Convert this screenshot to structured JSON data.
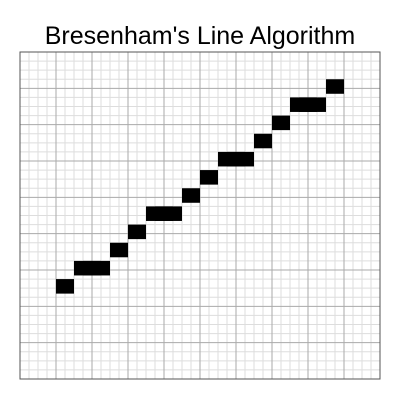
{
  "title": "Bresenham's Line Algorithm",
  "grid": {
    "columns": 40,
    "rows": 36,
    "major_every": 4,
    "minor_color": "#dddddd",
    "major_color": "#aaaaaa",
    "border_color": "#555555"
  },
  "pixel_color": "#000000",
  "background_color": "#ffffff",
  "lit_pixels": [
    {
      "col": 4,
      "row": 25
    },
    {
      "col": 6,
      "row": 23
    },
    {
      "col": 7,
      "row": 23
    },
    {
      "col": 8,
      "row": 23
    },
    {
      "col": 10,
      "row": 21
    },
    {
      "col": 12,
      "row": 19
    },
    {
      "col": 14,
      "row": 17
    },
    {
      "col": 15,
      "row": 17
    },
    {
      "col": 16,
      "row": 17
    },
    {
      "col": 18,
      "row": 15
    },
    {
      "col": 20,
      "row": 13
    },
    {
      "col": 22,
      "row": 11
    },
    {
      "col": 23,
      "row": 11
    },
    {
      "col": 24,
      "row": 11
    },
    {
      "col": 26,
      "row": 9
    },
    {
      "col": 28,
      "row": 7
    },
    {
      "col": 30,
      "row": 5
    },
    {
      "col": 31,
      "row": 5
    },
    {
      "col": 32,
      "row": 5
    },
    {
      "col": 34,
      "row": 3
    }
  ]
}
